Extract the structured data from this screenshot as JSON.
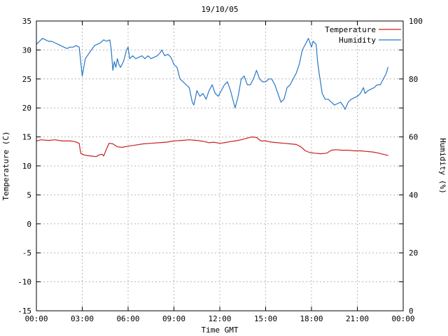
{
  "chart_data": {
    "type": "line",
    "title": "19/10/05",
    "xlabel": "Time GMT",
    "ylabel_left": "Temperature (C)",
    "ylabel_right": "Humidity (%)",
    "grid": true,
    "legend_position": "top-right-inside",
    "x_range_hours": [
      0,
      24
    ],
    "x_tick_step_hours": 3,
    "x_tick_labels": [
      "00:00",
      "03:00",
      "06:00",
      "09:00",
      "12:00",
      "15:00",
      "18:00",
      "21:00",
      "00:00"
    ],
    "left_axis": {
      "range": [
        -15,
        35
      ],
      "tick_step": 5,
      "tick_labels": [
        "-15",
        "-10",
        "-5",
        "0",
        "5",
        "10",
        "15",
        "20",
        "25",
        "30",
        "35"
      ]
    },
    "right_axis": {
      "range": [
        0,
        100
      ],
      "tick_step": 10,
      "label_step": 20,
      "tick_labels": [
        "0",
        "20",
        "40",
        "60",
        "80",
        "100"
      ]
    },
    "colors": {
      "grid": "#b8b8b8",
      "border": "#000000"
    },
    "series": [
      {
        "name": "Temperature",
        "axis": "left",
        "color": "#c82020",
        "points": [
          [
            0,
            14.3
          ],
          [
            0.3,
            14.5
          ],
          [
            0.8,
            14.4
          ],
          [
            1.2,
            14.5
          ],
          [
            1.7,
            14.3
          ],
          [
            2.2,
            14.3
          ],
          [
            2.5,
            14.2
          ],
          [
            2.8,
            13.9
          ],
          [
            2.9,
            12.2
          ],
          [
            3.1,
            11.9
          ],
          [
            3.3,
            11.8
          ],
          [
            3.6,
            11.7
          ],
          [
            3.9,
            11.6
          ],
          [
            4.1,
            11.9
          ],
          [
            4.3,
            12.0
          ],
          [
            4.4,
            11.7
          ],
          [
            4.6,
            13.0
          ],
          [
            4.75,
            13.9
          ],
          [
            5.0,
            13.8
          ],
          [
            5.3,
            13.3
          ],
          [
            5.6,
            13.2
          ],
          [
            6.0,
            13.4
          ],
          [
            6.5,
            13.6
          ],
          [
            7.0,
            13.8
          ],
          [
            7.5,
            13.9
          ],
          [
            8.0,
            14.0
          ],
          [
            8.5,
            14.1
          ],
          [
            9.0,
            14.3
          ],
          [
            9.5,
            14.4
          ],
          [
            10.0,
            14.5
          ],
          [
            10.5,
            14.4
          ],
          [
            11.0,
            14.2
          ],
          [
            11.3,
            14.0
          ],
          [
            11.6,
            14.1
          ],
          [
            12.0,
            13.9
          ],
          [
            12.3,
            14.0
          ],
          [
            12.7,
            14.2
          ],
          [
            13.0,
            14.3
          ],
          [
            13.4,
            14.5
          ],
          [
            13.8,
            14.8
          ],
          [
            14.1,
            15.0
          ],
          [
            14.4,
            14.9
          ],
          [
            14.7,
            14.3
          ],
          [
            15.0,
            14.3
          ],
          [
            15.4,
            14.1
          ],
          [
            15.8,
            14.0
          ],
          [
            16.2,
            13.9
          ],
          [
            16.6,
            13.8
          ],
          [
            17.0,
            13.7
          ],
          [
            17.3,
            13.3
          ],
          [
            17.6,
            12.6
          ],
          [
            17.9,
            12.3
          ],
          [
            18.2,
            12.2
          ],
          [
            18.6,
            12.1
          ],
          [
            19.0,
            12.2
          ],
          [
            19.3,
            12.7
          ],
          [
            19.6,
            12.8
          ],
          [
            20.0,
            12.7
          ],
          [
            20.4,
            12.7
          ],
          [
            20.8,
            12.6
          ],
          [
            21.2,
            12.6
          ],
          [
            21.6,
            12.5
          ],
          [
            22.0,
            12.4
          ],
          [
            22.4,
            12.2
          ],
          [
            22.7,
            12.0
          ],
          [
            23.0,
            11.8
          ]
        ]
      },
      {
        "name": "Humidity",
        "axis": "right",
        "color": "#2878c8",
        "points": [
          [
            0,
            92
          ],
          [
            0.2,
            93
          ],
          [
            0.4,
            94
          ],
          [
            0.6,
            93.5
          ],
          [
            0.8,
            93
          ],
          [
            1,
            93
          ],
          [
            1.2,
            92.5
          ],
          [
            1.4,
            92
          ],
          [
            1.6,
            91.5
          ],
          [
            1.8,
            91
          ],
          [
            2,
            90.5
          ],
          [
            2.2,
            91
          ],
          [
            2.4,
            91
          ],
          [
            2.6,
            91.5
          ],
          [
            2.8,
            91
          ],
          [
            2.9,
            86
          ],
          [
            3,
            81
          ],
          [
            3.1,
            84
          ],
          [
            3.2,
            87
          ],
          [
            3.4,
            88.5
          ],
          [
            3.6,
            90
          ],
          [
            3.8,
            91.5
          ],
          [
            4,
            92
          ],
          [
            4.2,
            92.5
          ],
          [
            4.4,
            93.5
          ],
          [
            4.6,
            93
          ],
          [
            4.8,
            93.5
          ],
          [
            4.9,
            90
          ],
          [
            5,
            83
          ],
          [
            5.1,
            86
          ],
          [
            5.2,
            84
          ],
          [
            5.3,
            87
          ],
          [
            5.4,
            85
          ],
          [
            5.5,
            84
          ],
          [
            5.7,
            86
          ],
          [
            5.9,
            90
          ],
          [
            6,
            91
          ],
          [
            6.1,
            87
          ],
          [
            6.3,
            88
          ],
          [
            6.5,
            87
          ],
          [
            6.7,
            87.5
          ],
          [
            6.9,
            88
          ],
          [
            7.1,
            87
          ],
          [
            7.3,
            88
          ],
          [
            7.5,
            87
          ],
          [
            7.7,
            87.5
          ],
          [
            7.9,
            88
          ],
          [
            8.1,
            89
          ],
          [
            8.2,
            90
          ],
          [
            8.4,
            88
          ],
          [
            8.6,
            88.5
          ],
          [
            8.8,
            87.5
          ],
          [
            9,
            85
          ],
          [
            9.2,
            84
          ],
          [
            9.4,
            80
          ],
          [
            9.6,
            79
          ],
          [
            9.8,
            78
          ],
          [
            10,
            77
          ],
          [
            10.2,
            72
          ],
          [
            10.3,
            71
          ],
          [
            10.5,
            76
          ],
          [
            10.7,
            74
          ],
          [
            10.9,
            75
          ],
          [
            11.1,
            73
          ],
          [
            11.3,
            76
          ],
          [
            11.5,
            78
          ],
          [
            11.7,
            75
          ],
          [
            11.9,
            74
          ],
          [
            12.1,
            76
          ],
          [
            12.3,
            78
          ],
          [
            12.5,
            79
          ],
          [
            12.7,
            76
          ],
          [
            12.9,
            72
          ],
          [
            13,
            70
          ],
          [
            13.2,
            74
          ],
          [
            13.4,
            80
          ],
          [
            13.6,
            81
          ],
          [
            13.8,
            78
          ],
          [
            14,
            78
          ],
          [
            14.2,
            80
          ],
          [
            14.4,
            83
          ],
          [
            14.6,
            80
          ],
          [
            14.8,
            79
          ],
          [
            15,
            79
          ],
          [
            15.2,
            80
          ],
          [
            15.4,
            80
          ],
          [
            15.6,
            78
          ],
          [
            15.8,
            75
          ],
          [
            16,
            72
          ],
          [
            16.2,
            73
          ],
          [
            16.4,
            77
          ],
          [
            16.6,
            78
          ],
          [
            16.8,
            80
          ],
          [
            17,
            82
          ],
          [
            17.2,
            85
          ],
          [
            17.4,
            90
          ],
          [
            17.6,
            92
          ],
          [
            17.8,
            94
          ],
          [
            18,
            91
          ],
          [
            18.1,
            93
          ],
          [
            18.3,
            92
          ],
          [
            18.4,
            86
          ],
          [
            18.5,
            82
          ],
          [
            18.7,
            75
          ],
          [
            18.9,
            73
          ],
          [
            19.1,
            73
          ],
          [
            19.3,
            72
          ],
          [
            19.5,
            71
          ],
          [
            19.7,
            71.5
          ],
          [
            19.9,
            72
          ],
          [
            20.1,
            70.5
          ],
          [
            20.2,
            69.5
          ],
          [
            20.4,
            72
          ],
          [
            20.6,
            73
          ],
          [
            20.8,
            73.5
          ],
          [
            21,
            74
          ],
          [
            21.2,
            75
          ],
          [
            21.4,
            77
          ],
          [
            21.5,
            75
          ],
          [
            21.7,
            76
          ],
          [
            21.9,
            76.5
          ],
          [
            22.1,
            77
          ],
          [
            22.3,
            78
          ],
          [
            22.5,
            78
          ],
          [
            22.7,
            80
          ],
          [
            22.9,
            82
          ],
          [
            23,
            84
          ]
        ]
      }
    ]
  }
}
